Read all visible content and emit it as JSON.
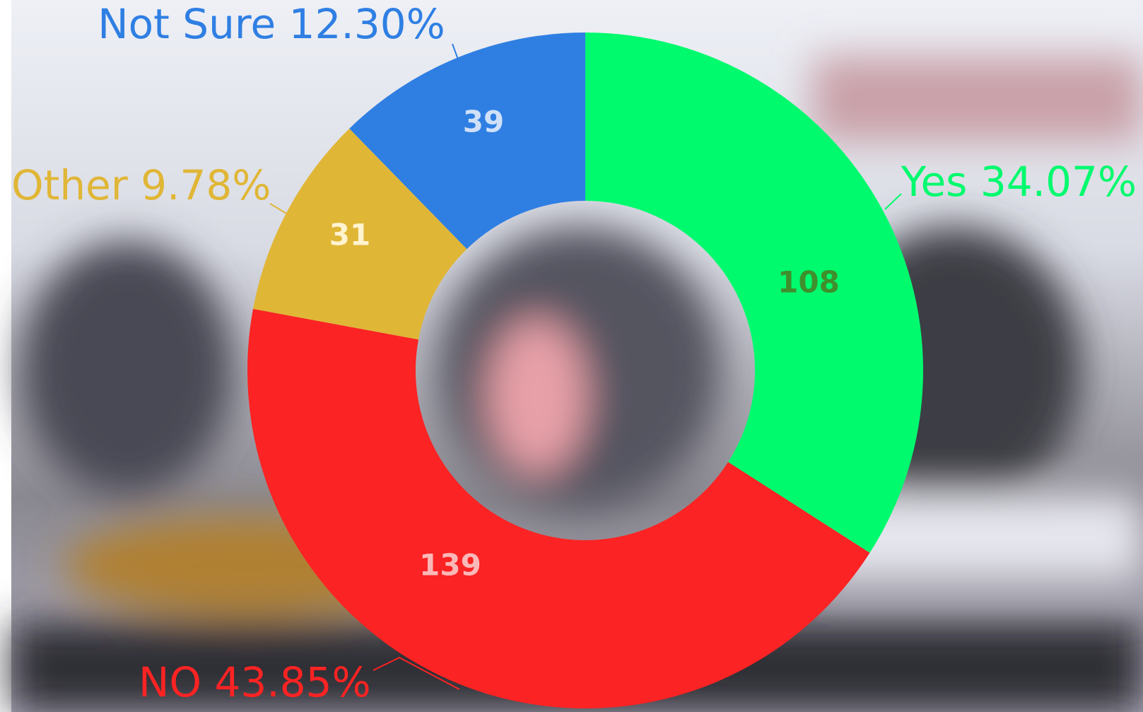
{
  "chart_data": {
    "type": "donut",
    "categories": [
      "Yes",
      "NO",
      "Other",
      "Not Sure"
    ],
    "values": [
      108,
      139,
      31,
      39
    ],
    "percent_labels": [
      "34.07%",
      "43.85%",
      "9.78%",
      "12.30%"
    ],
    "colors": [
      "#00fa6e",
      "#fb2323",
      "#e0b636",
      "#2f7fe3"
    ],
    "label_colors": [
      "#3f8f2c",
      "#fbb8b8",
      "#fff3d0",
      "#cfe0f8"
    ]
  }
}
